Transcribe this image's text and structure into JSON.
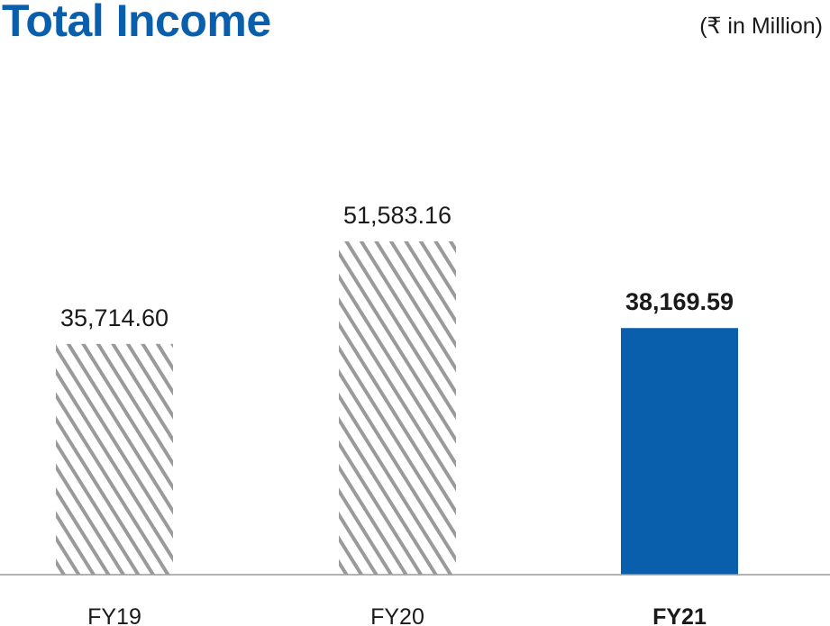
{
  "header": {
    "title": "Total Income",
    "unit": "(₹ in Million)"
  },
  "colors": {
    "title": "#0a5fad",
    "highlight_bar": "#0a5fad",
    "hatch": "#9a9a9a",
    "axis": "#9a9a9a",
    "text": "#1a1a1a"
  },
  "chart_data": {
    "type": "bar",
    "title": "Total Income",
    "subtitle": "(₹ in Million)",
    "categories": [
      "FY19",
      "FY20",
      "FY21"
    ],
    "values": [
      35714.6,
      51583.16,
      38169.59
    ],
    "value_labels": [
      "35,714.60",
      "51,583.16",
      "38,169.59"
    ],
    "highlight": [
      "hatched",
      "hatched",
      "solid"
    ],
    "xlabel": "",
    "ylabel": "",
    "ylim": [
      0,
      51583.16
    ],
    "grid": false,
    "legend": "none"
  }
}
